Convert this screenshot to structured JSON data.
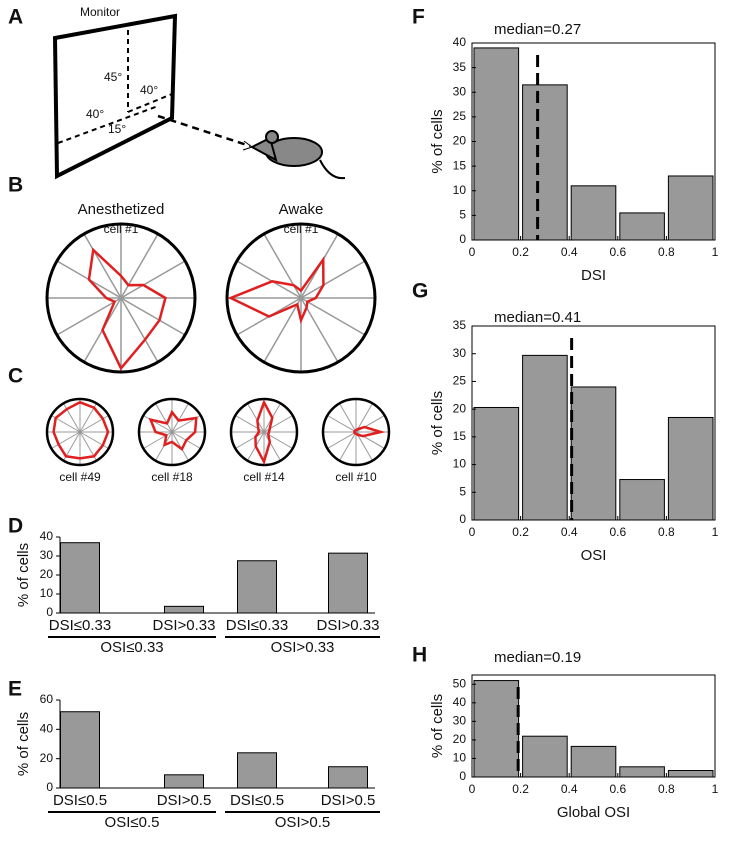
{
  "panel_labels": [
    "A",
    "B",
    "C",
    "D",
    "E",
    "F",
    "G",
    "H"
  ],
  "diagram": {
    "monitor": "Monitor",
    "angles": [
      "45°",
      "40°",
      "40°",
      "15°"
    ]
  },
  "chart_data": [
    {
      "type": "polar",
      "title": "Anesthetized",
      "subtitle": "cell #1",
      "color": "#e02020",
      "rlim": [
        0,
        1
      ],
      "values": [
        0.6,
        0.35,
        0.2,
        0.3,
        0.75,
        0.5,
        0.2,
        0.1,
        0.5,
        0.95,
        0.65,
        0.6
      ]
    },
    {
      "type": "polar",
      "title": "Awake",
      "subtitle": "cell #1",
      "color": "#e02020",
      "rlim": [
        0,
        1
      ],
      "values": [
        0.2,
        0.35,
        0.6,
        0.1,
        0.2,
        0.45,
        0.95,
        0.5,
        0.1,
        0.3,
        0.15,
        0.1
      ]
    },
    {
      "type": "polar",
      "title": "cell #49",
      "color": "#e02020",
      "rlim": [
        0,
        1
      ],
      "values": [
        0.85,
        0.8,
        0.85,
        0.9,
        0.8,
        0.85,
        0.8,
        0.75,
        0.85,
        0.8,
        0.85,
        0.8
      ]
    },
    {
      "type": "polar",
      "title": "cell #18",
      "color": "#e02020",
      "rlim": [
        0,
        1
      ],
      "values": [
        0.7,
        0.85,
        0.4,
        0.6,
        0.3,
        0.75,
        0.5,
        0.2,
        0.45,
        0.3,
        0.6,
        0.5
      ]
    },
    {
      "type": "polar",
      "title": "cell #14",
      "color": "#e02020",
      "rlim": [
        0,
        1
      ],
      "values": [
        0.15,
        0.2,
        0.5,
        0.9,
        0.4,
        0.2,
        0.15,
        0.3,
        0.5,
        0.9,
        0.35,
        0.15
      ]
    },
    {
      "type": "polar",
      "title": "cell #10",
      "color": "#e02020",
      "rlim": [
        0,
        1
      ],
      "values": [
        0.75,
        0.3,
        0.1,
        0.05,
        0.05,
        0.05,
        0.05,
        0.05,
        0.05,
        0.05,
        0.1,
        0.25
      ]
    },
    {
      "type": "bar",
      "ylabel": "% of cells",
      "color": "#999999",
      "categories": [
        "DSI≤0.33",
        "DSI>0.33",
        "DSI≤0.33",
        "DSI>0.33"
      ],
      "groups": [
        "OSI≤0.33",
        "OSI>0.33"
      ],
      "values": [
        37,
        3.5,
        27.5,
        31.5
      ],
      "ylim": [
        0,
        40
      ],
      "yticks": [
        0,
        10,
        20,
        30,
        40
      ]
    },
    {
      "type": "bar",
      "ylabel": "% of cells",
      "color": "#999999",
      "categories": [
        "DSI≤0.5",
        "DSI>0.5",
        "DSI≤0.5",
        "DSI>0.5"
      ],
      "groups": [
        "OSI≤0.5",
        "OSI>0.5"
      ],
      "values": [
        52,
        9,
        24,
        14.5
      ],
      "ylim": [
        0,
        60
      ],
      "yticks": [
        0,
        20,
        40,
        60
      ]
    },
    {
      "type": "histogram",
      "annotation": "median=0.27",
      "median": 0.27,
      "xlabel": "DSI",
      "ylabel": "% of cells",
      "color": "#999999",
      "bins": [
        0,
        0.2,
        0.4,
        0.6,
        0.8,
        1
      ],
      "values": [
        39,
        31.5,
        11,
        5.5,
        13
      ],
      "xlim": [
        0,
        1
      ],
      "xticks": [
        0,
        0.2,
        0.4,
        0.6,
        0.8,
        1
      ],
      "ylim": [
        0,
        40
      ],
      "yticks": [
        0,
        5,
        10,
        15,
        20,
        25,
        30,
        35,
        40
      ]
    },
    {
      "type": "histogram",
      "annotation": "median=0.41",
      "median": 0.41,
      "xlabel": "OSI",
      "ylabel": "% of cells",
      "color": "#999999",
      "bins": [
        0,
        0.2,
        0.4,
        0.6,
        0.8,
        1
      ],
      "values": [
        20.3,
        29.7,
        24,
        7.3,
        18.5
      ],
      "xlim": [
        0,
        1
      ],
      "xticks": [
        0,
        0.2,
        0.4,
        0.6,
        0.8,
        1
      ],
      "ylim": [
        0,
        35
      ],
      "yticks": [
        0,
        5,
        10,
        15,
        20,
        25,
        30,
        35
      ]
    },
    {
      "type": "histogram",
      "annotation": "median=0.19",
      "median": 0.19,
      "xlabel": "Global OSI",
      "ylabel": "% of cells",
      "color": "#999999",
      "bins": [
        0,
        0.2,
        0.4,
        0.6,
        0.8,
        1
      ],
      "values": [
        52,
        22,
        16.5,
        5.5,
        3.5
      ],
      "xlim": [
        0,
        1
      ],
      "xticks": [
        0,
        0.2,
        0.4,
        0.6,
        0.8,
        1
      ],
      "ylim": [
        0,
        55
      ],
      "yticks": [
        0,
        10,
        20,
        30,
        40,
        50
      ]
    }
  ]
}
